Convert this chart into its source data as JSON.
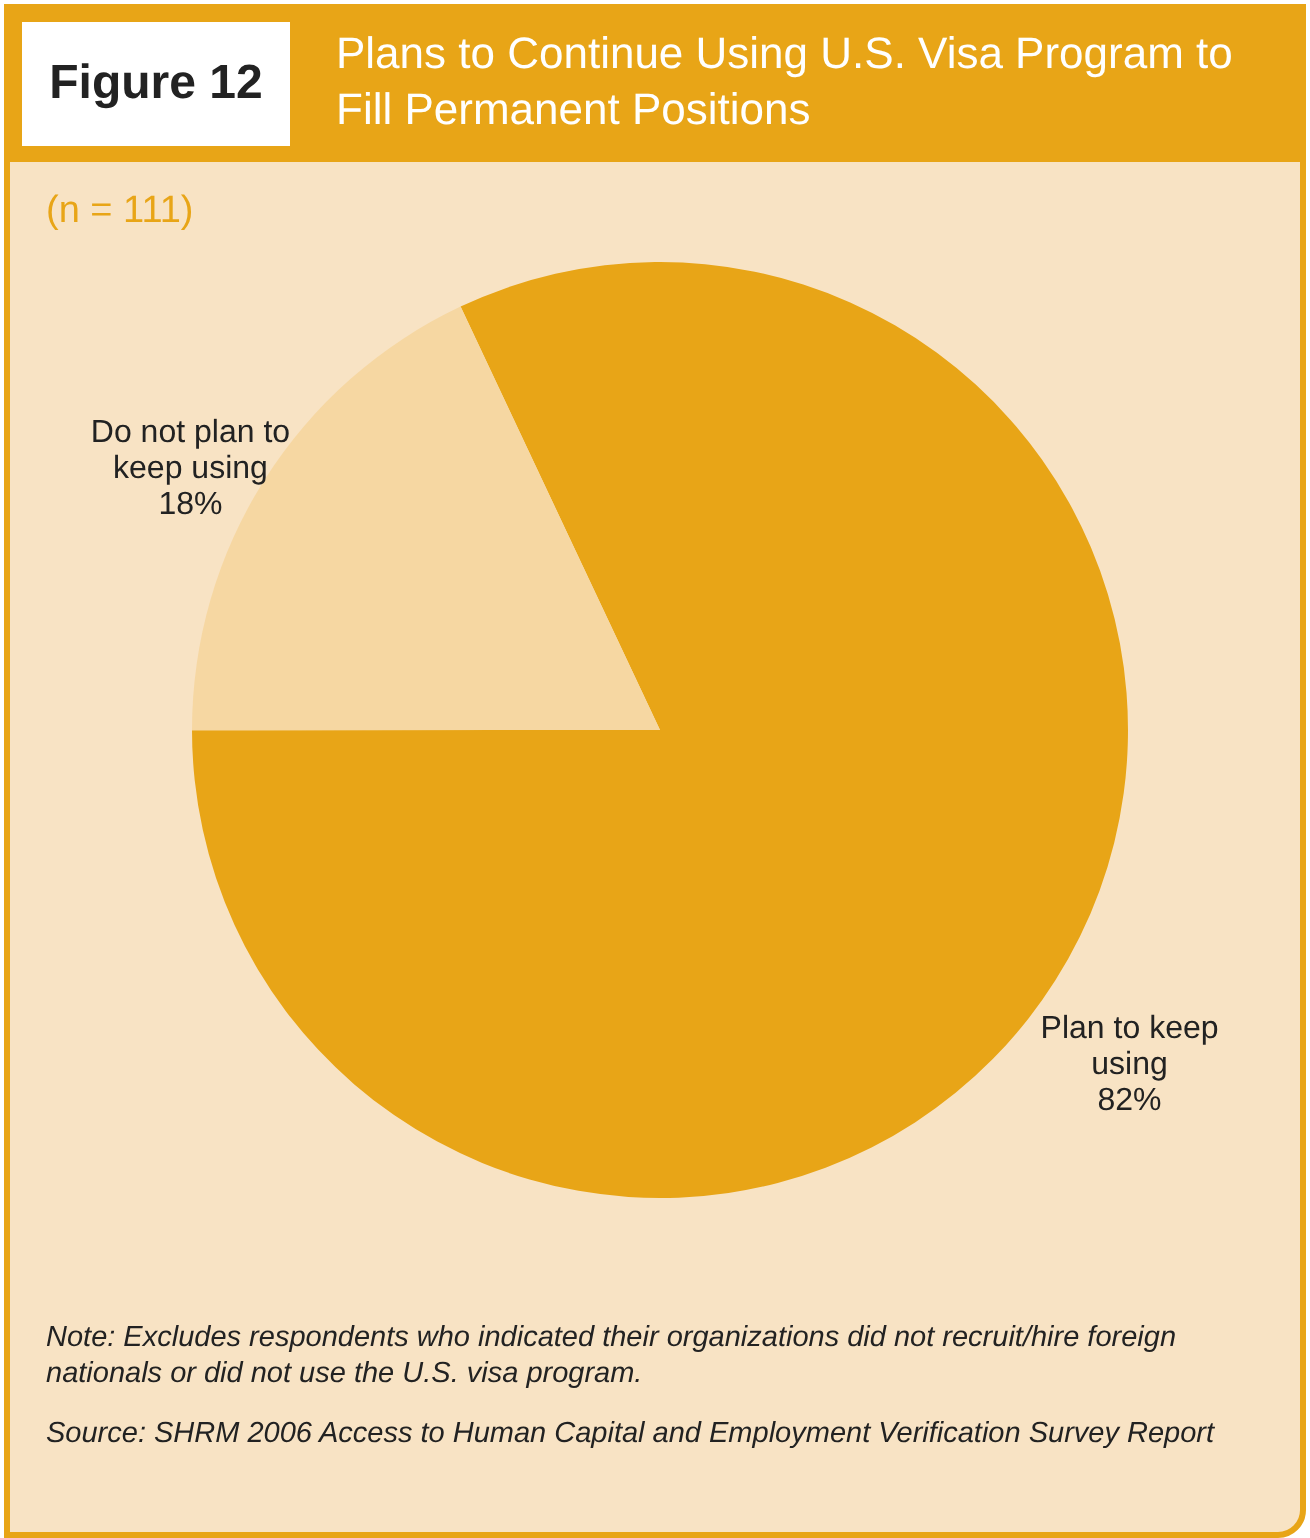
{
  "chart_data": {
    "type": "pie",
    "title": "Plans to Continue Using U.S. Visa Program to Fill Permanent Positions",
    "subtitle": "(n = 111)",
    "categories": [
      "Plan to keep using",
      "Do not plan to keep using"
    ],
    "values": [
      82,
      18
    ],
    "value_labels": [
      "82%",
      "18%"
    ],
    "colors": [
      "#e8a517",
      "#f6d7a2"
    ],
    "legend": false,
    "annotations": [
      "Figure 12",
      "Note: Excludes respondents who indicated their organizations did not recruit/hire foreign nationals or did not use the U.S. visa program.",
      "Source: SHRM 2006 Access to Human Capital and Employment Verification Survey Report"
    ]
  }
}
